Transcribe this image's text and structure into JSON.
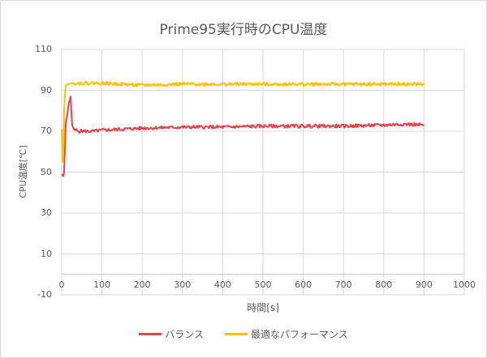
{
  "chart_data": {
    "type": "line",
    "title": "Prime95実行時のCPU温度",
    "xlabel": "時間[s]",
    "ylabel": "CPU温度[℃]",
    "xlim": [
      0,
      1000
    ],
    "ylim": [
      -10,
      110
    ],
    "x_ticks": [
      0,
      100,
      200,
      300,
      400,
      500,
      600,
      700,
      800,
      900,
      1000
    ],
    "y_ticks": [
      110,
      90,
      70,
      50,
      30,
      10,
      -10
    ],
    "grid": true,
    "legend_position": "bottom",
    "series": [
      {
        "name": "バランス",
        "color": "#e8434b",
        "points": [
          [
            0,
            49
          ],
          [
            4,
            48
          ],
          [
            6,
            50
          ],
          [
            8,
            62
          ],
          [
            10,
            74
          ],
          [
            14,
            78
          ],
          [
            18,
            84
          ],
          [
            20,
            85
          ],
          [
            22,
            87
          ],
          [
            24,
            80
          ],
          [
            26,
            73
          ],
          [
            30,
            71
          ],
          [
            40,
            70
          ],
          [
            60,
            70
          ],
          [
            80,
            70
          ],
          [
            100,
            70.5
          ],
          [
            150,
            71
          ],
          [
            200,
            71.5
          ],
          [
            300,
            72
          ],
          [
            400,
            72
          ],
          [
            500,
            72.5
          ],
          [
            600,
            72.5
          ],
          [
            700,
            72.5
          ],
          [
            800,
            73
          ],
          [
            850,
            73.5
          ],
          [
            900,
            73
          ]
        ]
      },
      {
        "name": "最適なパフォーマンス",
        "color": "#ffc000",
        "points": [
          [
            0,
            71
          ],
          [
            2,
            55
          ],
          [
            4,
            60
          ],
          [
            6,
            80
          ],
          [
            8,
            88
          ],
          [
            10,
            92
          ],
          [
            14,
            93
          ],
          [
            30,
            93.5
          ],
          [
            60,
            93.5
          ],
          [
            100,
            93.5
          ],
          [
            150,
            93
          ],
          [
            200,
            92.5
          ],
          [
            300,
            93
          ],
          [
            400,
            93
          ],
          [
            500,
            93
          ],
          [
            600,
            93
          ],
          [
            700,
            93
          ],
          [
            800,
            93
          ],
          [
            900,
            93
          ]
        ]
      }
    ]
  },
  "legend": {
    "items": [
      {
        "label": "バランス",
        "color": "#e8434b"
      },
      {
        "label": "最適なパフォーマンス",
        "color": "#ffc000"
      }
    ]
  }
}
